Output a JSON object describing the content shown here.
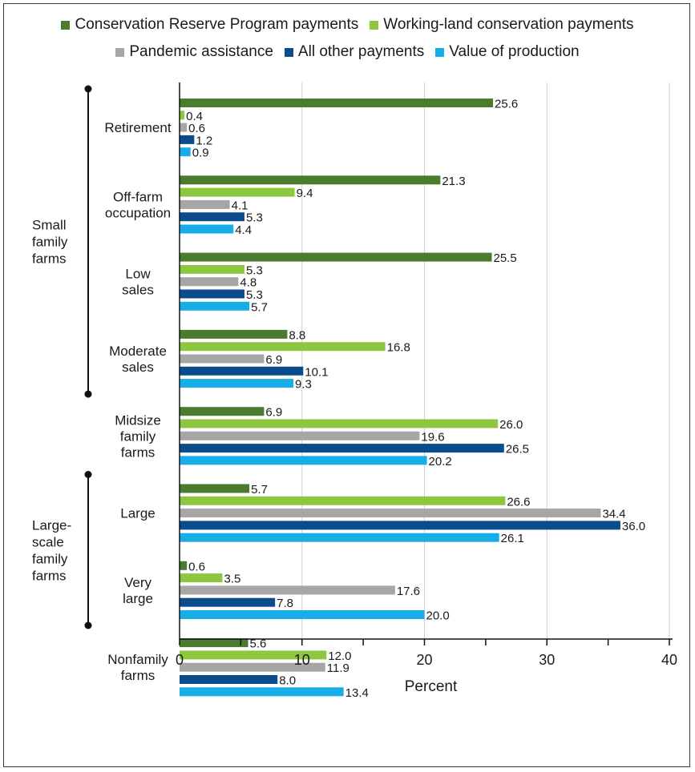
{
  "chart_data": {
    "type": "bar",
    "orientation": "horizontal",
    "categories": [
      "Retirement",
      "Off-farm occupation",
      "Low sales",
      "Moderate sales",
      "Midsize family farms",
      "Large",
      "Very large",
      "Nonfamily farms"
    ],
    "category_lines": [
      [
        "Retirement"
      ],
      [
        "Off-farm",
        "occupation"
      ],
      [
        "Low",
        "sales"
      ],
      [
        "Moderate",
        "sales"
      ],
      [
        "Midsize",
        "family",
        "farms"
      ],
      [
        "Large"
      ],
      [
        "Very",
        "large"
      ],
      [
        "Nonfamily",
        "farms"
      ]
    ],
    "groups": [
      {
        "label": "Small family farms",
        "lines": [
          "Small",
          "family",
          "farms"
        ],
        "from": 0,
        "to": 3
      },
      {
        "label": "Large-scale family farms",
        "lines": [
          "Large-",
          "scale",
          "family",
          "farms"
        ],
        "from": 5,
        "to": 6
      }
    ],
    "series": [
      {
        "name": "Conservation Reserve Program payments",
        "color": "#4a7c2f",
        "values": [
          25.6,
          21.3,
          25.5,
          8.8,
          6.9,
          5.7,
          0.6,
          5.6
        ]
      },
      {
        "name": "Working-land conservation payments",
        "color": "#8dc63f",
        "values": [
          0.4,
          9.4,
          5.3,
          16.8,
          26.0,
          26.6,
          3.5,
          12.0
        ]
      },
      {
        "name": "Pandemic assistance",
        "color": "#a6a6a6",
        "values": [
          0.6,
          4.1,
          4.8,
          6.9,
          19.6,
          34.4,
          17.6,
          11.9
        ]
      },
      {
        "name": "All other payments",
        "color": "#0b4c8c",
        "values": [
          1.2,
          5.3,
          5.3,
          10.1,
          26.5,
          36.0,
          7.8,
          8.0
        ]
      },
      {
        "name": "Value of production",
        "color": "#17aee8",
        "values": [
          0.9,
          4.4,
          5.7,
          9.3,
          20.2,
          26.1,
          20.0,
          13.4
        ]
      }
    ],
    "xlabel": "Percent",
    "xlim": [
      0,
      40
    ],
    "xticks": [
      0,
      10,
      20,
      30,
      40
    ],
    "grid": true,
    "legend_position": "top"
  }
}
